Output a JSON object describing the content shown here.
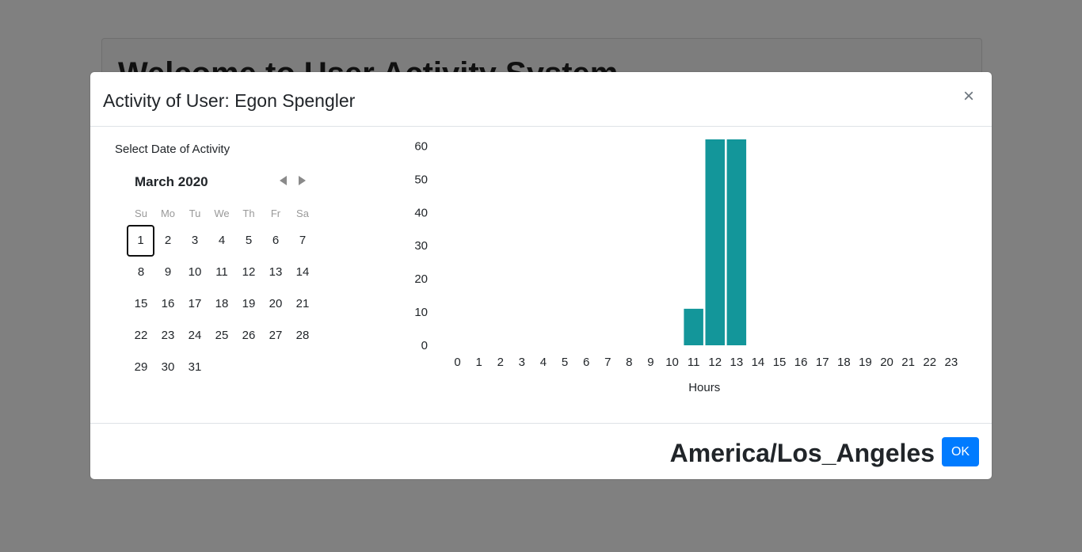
{
  "background": {
    "page_heading": "Welcome to User Activity System"
  },
  "modal": {
    "title": "Activity of User: Egon Spengler",
    "close_symbol": "×",
    "calendar": {
      "label": "Select Date of Activity",
      "month_year": "March 2020",
      "weekdays": [
        "Su",
        "Mo",
        "Tu",
        "We",
        "Th",
        "Fr",
        "Sa"
      ],
      "days": [
        "1",
        "2",
        "3",
        "4",
        "5",
        "6",
        "7",
        "8",
        "9",
        "10",
        "11",
        "12",
        "13",
        "14",
        "15",
        "16",
        "17",
        "18",
        "19",
        "20",
        "21",
        "22",
        "23",
        "24",
        "25",
        "26",
        "27",
        "28",
        "29",
        "30",
        "31"
      ],
      "selected_day": "1",
      "first_weekday_index": 0
    },
    "footer": {
      "timezone": "America/Los_Angeles",
      "ok_label": "OK"
    }
  },
  "colors": {
    "bar": "#13969a",
    "primary_button": "#007bff",
    "overlay": "#808080"
  },
  "chart_data": {
    "type": "bar",
    "xlabel": "Hours",
    "ylabel": "",
    "categories": [
      "0",
      "1",
      "2",
      "3",
      "4",
      "5",
      "6",
      "7",
      "8",
      "9",
      "10",
      "11",
      "12",
      "13",
      "14",
      "15",
      "16",
      "17",
      "18",
      "19",
      "20",
      "21",
      "22",
      "23"
    ],
    "values": [
      0,
      0,
      0,
      0,
      0,
      0,
      0,
      0,
      0,
      0,
      0,
      11,
      62,
      62,
      0,
      0,
      0,
      0,
      0,
      0,
      0,
      0,
      0,
      0
    ],
    "yticks": [
      0,
      10,
      20,
      30,
      40,
      50,
      60
    ],
    "ylim": [
      0,
      62
    ],
    "grid": false,
    "legend": "none"
  }
}
